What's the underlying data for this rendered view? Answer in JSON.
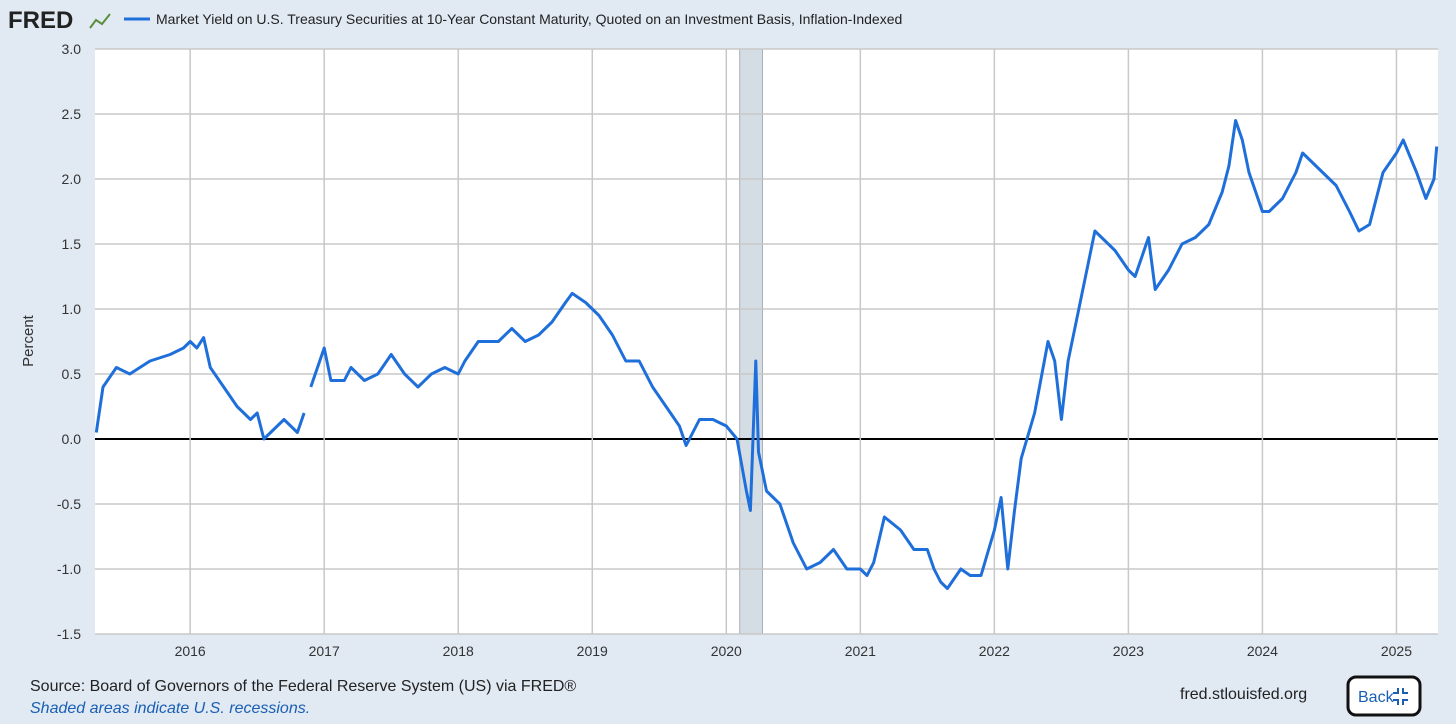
{
  "logo": "FRED",
  "chart_data": {
    "type": "line",
    "title": "Market Yield on U.S. Treasury Securities at 10-Year Constant Maturity, Quoted on an Investment Basis, Inflation-Indexed",
    "y_label": "Percent",
    "xlim": [
      2015.29,
      2025.31
    ],
    "xticks": [
      2016,
      2017,
      2018,
      2019,
      2020,
      2021,
      2022,
      2023,
      2024,
      2025
    ],
    "ylim": [
      -1.5,
      3.0
    ],
    "yticks": [
      {
        "value": 3.0,
        "label": "3.0"
      },
      2.5,
      {
        "value": 2.0,
        "label": "2.0"
      },
      1.5,
      {
        "value": 1.0,
        "label": "1.0"
      },
      0.5,
      {
        "value": 0.0,
        "label": "0.0"
      },
      -0.5,
      {
        "value": -1.0,
        "label": "-1.0"
      },
      -1.5
    ],
    "grid": true,
    "recessions": [
      [
        2020.1,
        2020.27
      ]
    ],
    "x": [
      2015.3,
      2015.35,
      2015.45,
      2015.55,
      2015.7,
      2015.85,
      2015.95,
      2016.0,
      2016.05,
      2016.1,
      2016.15,
      2016.25,
      2016.35,
      2016.45,
      2016.5,
      2016.55,
      2016.6,
      2016.7,
      2016.8,
      2016.85,
      2016.88,
      2016.9,
      2016.95,
      2017.0,
      2017.05,
      2017.15,
      2017.2,
      2017.3,
      2017.4,
      2017.5,
      2017.6,
      2017.7,
      2017.8,
      2017.9,
      2018.0,
      2018.05,
      2018.15,
      2018.3,
      2018.4,
      2018.5,
      2018.6,
      2018.7,
      2018.8,
      2018.85,
      2018.95,
      2019.05,
      2019.15,
      2019.25,
      2019.35,
      2019.45,
      2019.55,
      2019.65,
      2019.7,
      2019.8,
      2019.9,
      2020.0,
      2020.08,
      2020.15,
      2020.18,
      2020.22,
      2020.24,
      2020.3,
      2020.4,
      2020.5,
      2020.6,
      2020.7,
      2020.8,
      2020.9,
      2021.0,
      2021.05,
      2021.1,
      2021.18,
      2021.3,
      2021.4,
      2021.5,
      2021.55,
      2021.6,
      2021.65,
      2021.75,
      2021.82,
      2021.9,
      2022.0,
      2022.05,
      2022.1,
      2022.15,
      2022.2,
      2022.3,
      2022.4,
      2022.45,
      2022.5,
      2022.55,
      2022.65,
      2022.75,
      2022.8,
      2022.9,
      2023.0,
      2023.05,
      2023.15,
      2023.2,
      2023.3,
      2023.4,
      2023.5,
      2023.6,
      2023.7,
      2023.75,
      2023.8,
      2023.85,
      2023.9,
      2024.0,
      2024.05,
      2024.15,
      2024.25,
      2024.3,
      2024.45,
      2024.55,
      2024.65,
      2024.72,
      2024.8,
      2024.9,
      2025.0,
      2025.05,
      2025.15,
      2025.22,
      2025.28,
      2025.3
    ],
    "series": [
      {
        "name": "Market Yield on U.S. Treasury Securities at 10-Year Constant Maturity, Quoted on an Investment Basis, Inflation-Indexed",
        "color": "#1f6fdb",
        "values": [
          0.05,
          0.4,
          0.55,
          0.5,
          0.6,
          0.65,
          0.7,
          0.75,
          0.7,
          0.78,
          0.55,
          0.4,
          0.25,
          0.15,
          0.2,
          0.0,
          0.05,
          0.15,
          0.05,
          0.2,
          null,
          0.4,
          0.55,
          0.7,
          0.45,
          0.45,
          0.55,
          0.45,
          0.5,
          0.65,
          0.5,
          0.4,
          0.5,
          0.55,
          0.5,
          0.6,
          0.75,
          0.75,
          0.85,
          0.75,
          0.8,
          0.9,
          1.05,
          1.12,
          1.05,
          0.95,
          0.8,
          0.6,
          0.6,
          0.4,
          0.25,
          0.1,
          -0.05,
          0.15,
          0.15,
          0.1,
          0.0,
          -0.4,
          -0.55,
          0.6,
          -0.1,
          -0.4,
          -0.5,
          -0.8,
          -1.0,
          -0.95,
          -0.85,
          -1.0,
          -1.0,
          -1.05,
          -0.95,
          -0.6,
          -0.7,
          -0.85,
          -0.85,
          -1.0,
          -1.1,
          -1.15,
          -1.0,
          -1.05,
          -1.05,
          -0.7,
          -0.45,
          -1.0,
          -0.55,
          -0.15,
          0.2,
          0.75,
          0.6,
          0.15,
          0.6,
          1.1,
          1.6,
          1.55,
          1.45,
          1.3,
          1.25,
          1.55,
          1.15,
          1.3,
          1.5,
          1.55,
          1.65,
          1.9,
          2.1,
          2.45,
          2.3,
          2.05,
          1.75,
          1.75,
          1.85,
          2.05,
          2.2,
          2.05,
          1.95,
          1.75,
          1.6,
          1.65,
          2.05,
          2.2,
          2.3,
          2.05,
          1.85,
          2.0,
          2.25
        ]
      }
    ]
  },
  "footer": {
    "source": "Source: Board of Governors of the Federal Reserve System (US) via FRED®",
    "note": "Shaded areas indicate U.S. recessions.",
    "site": "fred.stlouisfed.org",
    "button": "Back"
  }
}
